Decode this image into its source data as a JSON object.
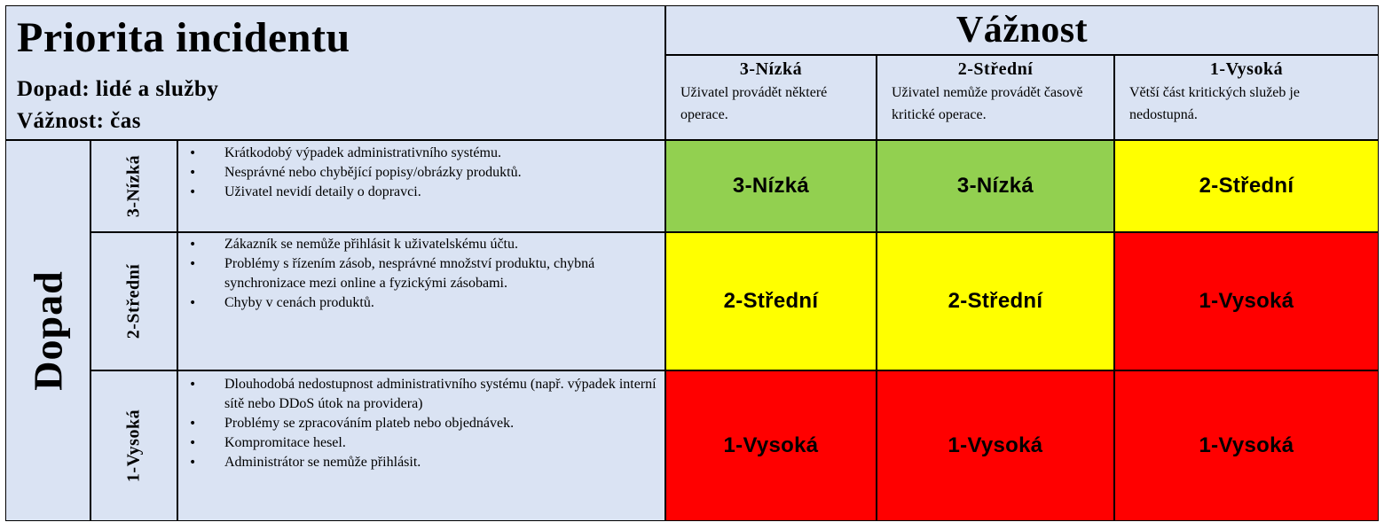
{
  "header": {
    "title": "Priorita incidentu",
    "subtitle_impact": "Dopad: lidé a služby",
    "subtitle_severity": "Vážnost: čas"
  },
  "severity": {
    "title": "Vážnost",
    "columns": [
      {
        "label": "3-Nízká",
        "description": "Uživatel provádět některé operace."
      },
      {
        "label": "2-Střední",
        "description": "Uživatel nemůže provádět časově kritické operace."
      },
      {
        "label": "1-Vysoká",
        "description": "Větší část kritických služeb je nedostupná."
      }
    ]
  },
  "impact": {
    "title": "Dopad",
    "rows": [
      {
        "label": "3-Nízká",
        "items": [
          "Krátkodobý výpadek administrativního systému.",
          "Nesprávné nebo chybějící popisy/obrázky produktů.",
          "Uživatel nevidí detaily o dopravci."
        ],
        "priorities": [
          "3-Nízká",
          "3-Nízká",
          "2-Střední"
        ]
      },
      {
        "label": "2-Střední",
        "items": [
          "Zákazník se nemůže přihlásit k uživatelskému účtu.",
          "Problémy s řízením zásob, nesprávné množství produktu, chybná synchronizace mezi online a fyzickými zásobami.",
          "Chyby v cenách produktů."
        ],
        "priorities": [
          "2-Střední",
          "2-Střední",
          "1-Vysoká"
        ]
      },
      {
        "label": "1-Vysoká",
        "items": [
          "Dlouhodobá nedostupnost administrativního systému (např. výpadek interní sítě nebo DDoS útok na providera)",
          "Problémy se zpracováním plateb nebo objednávek.",
          "Kompromitace hesel.",
          "Administrátor se nemůže přihlásit."
        ],
        "priorities": [
          "1-Vysoká",
          "1-Vysoká",
          "1-Vysoká"
        ]
      }
    ]
  },
  "colors": {
    "header_bg": "#dae3f3",
    "low": "#92d050",
    "medium": "#ffff00",
    "high": "#ff0000"
  }
}
